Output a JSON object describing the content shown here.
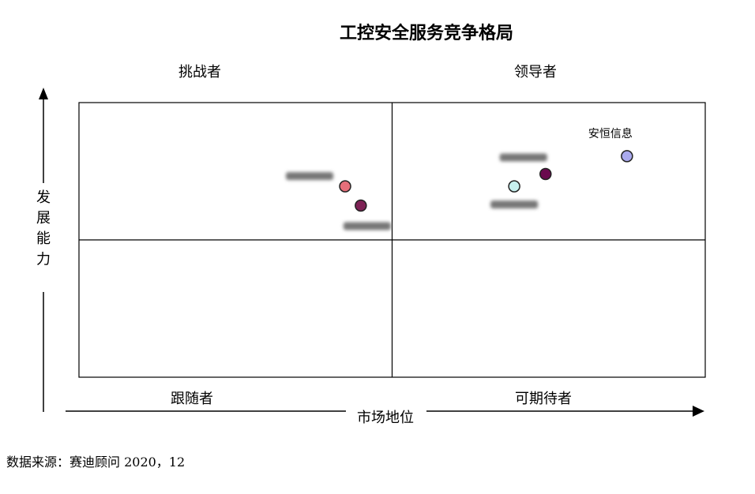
{
  "chart_data": {
    "type": "scatter",
    "title": "工控安全服务竞争格局",
    "xlabel": "市场地位",
    "ylabel": "发展能力",
    "quadrants": {
      "top_left": "挑战者",
      "top_right": "领导者",
      "bottom_left": "跟随者",
      "bottom_right": "可期待者"
    },
    "xlim": [
      0,
      100
    ],
    "ylim": [
      0,
      100
    ],
    "points": [
      {
        "label": "安恒信息",
        "x": 87.5,
        "y": 80.5,
        "color": "#aaaaee",
        "label_visible": true
      },
      {
        "label": "",
        "x": 74.5,
        "y": 74.0,
        "color": "#6a0a4e",
        "label_visible": false
      },
      {
        "label": "",
        "x": 69.5,
        "y": 69.5,
        "color": "#c7f0ef",
        "label_visible": false
      },
      {
        "label": "",
        "x": 42.5,
        "y": 69.5,
        "color": "#e66f7a",
        "label_visible": false
      },
      {
        "label": "",
        "x": 45.0,
        "y": 62.5,
        "color": "#7e2255",
        "label_visible": false
      }
    ]
  },
  "source": "数据来源：赛迪顾问  2020，12"
}
